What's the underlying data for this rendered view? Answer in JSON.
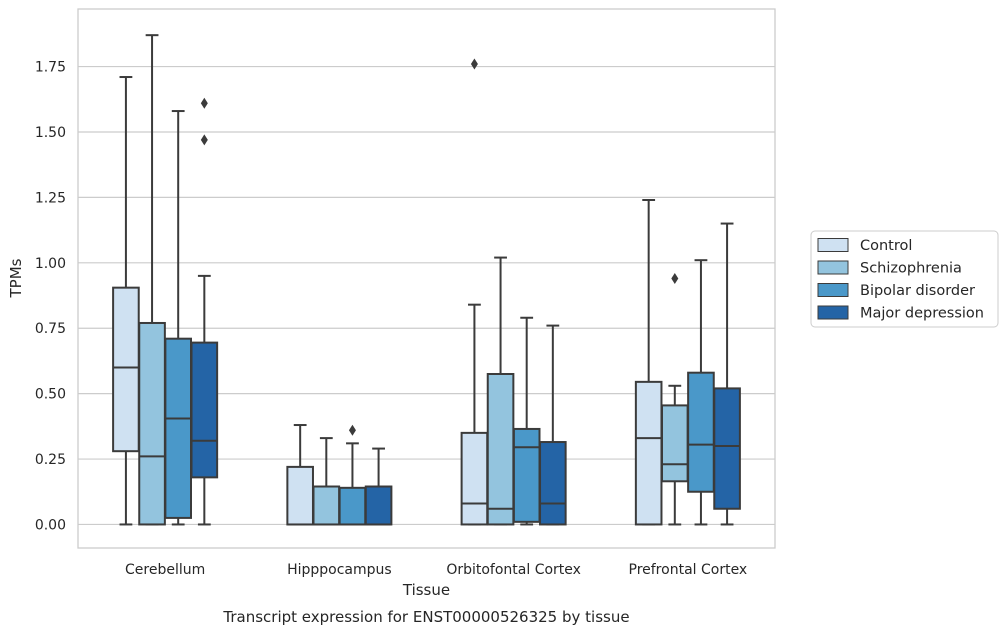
{
  "chart_data": {
    "type": "box",
    "title": "",
    "caption": "Transcript expression for ENST00000526325 by tissue",
    "xlabel": "Tissue",
    "ylabel": "TPMs",
    "ylim": [
      -0.09,
      1.97
    ],
    "yticks": [
      0.0,
      0.25,
      0.5,
      0.75,
      1.0,
      1.25,
      1.5,
      1.75
    ],
    "ytick_labels": [
      "0.00",
      "0.25",
      "0.50",
      "0.75",
      "1.00",
      "1.25",
      "1.50",
      "1.75"
    ],
    "grid": "horizontal",
    "legend_position": "right",
    "categories": [
      "Cerebellum",
      "Hipppocampus",
      "Orbitofontal Cortex",
      "Prefrontal Cortex"
    ],
    "series": [
      {
        "name": "Control",
        "color": "#cfe1f2",
        "boxes": [
          {
            "whisker_low": 0.0,
            "q1": 0.28,
            "median": 0.6,
            "q3": 0.905,
            "whisker_high": 1.71,
            "outliers": []
          },
          {
            "whisker_low": 0.0,
            "q1": 0.0,
            "median": 0.0,
            "q3": 0.22,
            "whisker_high": 0.38,
            "outliers": []
          },
          {
            "whisker_low": 0.0,
            "q1": 0.0,
            "median": 0.08,
            "q3": 0.35,
            "whisker_high": 0.84,
            "outliers": [
              1.76
            ]
          },
          {
            "whisker_low": 0.0,
            "q1": 0.0,
            "median": 0.33,
            "q3": 0.545,
            "whisker_high": 1.24,
            "outliers": []
          }
        ]
      },
      {
        "name": "Schizophrenia",
        "color": "#93c4de",
        "boxes": [
          {
            "whisker_low": 0.0,
            "q1": 0.0,
            "median": 0.26,
            "q3": 0.77,
            "whisker_high": 1.87,
            "outliers": []
          },
          {
            "whisker_low": 0.0,
            "q1": 0.0,
            "median": 0.0,
            "q3": 0.145,
            "whisker_high": 0.33,
            "outliers": []
          },
          {
            "whisker_low": 0.0,
            "q1": 0.0,
            "median": 0.06,
            "q3": 0.575,
            "whisker_high": 1.02,
            "outliers": []
          },
          {
            "whisker_low": 0.0,
            "q1": 0.165,
            "median": 0.23,
            "q3": 0.455,
            "whisker_high": 0.53,
            "outliers": [
              0.94
            ]
          }
        ]
      },
      {
        "name": "Bipolar disorder",
        "color": "#4a98c9",
        "boxes": [
          {
            "whisker_low": 0.0,
            "q1": 0.025,
            "median": 0.405,
            "q3": 0.71,
            "whisker_high": 1.58,
            "outliers": []
          },
          {
            "whisker_low": 0.0,
            "q1": 0.0,
            "median": 0.0,
            "q3": 0.14,
            "whisker_high": 0.31,
            "outliers": [
              0.36
            ]
          },
          {
            "whisker_low": 0.0,
            "q1": 0.01,
            "median": 0.295,
            "q3": 0.365,
            "whisker_high": 0.79,
            "outliers": []
          },
          {
            "whisker_low": 0.0,
            "q1": 0.125,
            "median": 0.305,
            "q3": 0.58,
            "whisker_high": 1.01,
            "outliers": []
          }
        ]
      },
      {
        "name": "Major depression",
        "color": "#2464a6",
        "boxes": [
          {
            "whisker_low": 0.0,
            "q1": 0.18,
            "median": 0.32,
            "q3": 0.695,
            "whisker_high": 0.95,
            "outliers": [
              1.47,
              1.61
            ]
          },
          {
            "whisker_low": 0.0,
            "q1": 0.0,
            "median": 0.0,
            "q3": 0.145,
            "whisker_high": 0.29,
            "outliers": []
          },
          {
            "whisker_low": 0.0,
            "q1": 0.0,
            "median": 0.08,
            "q3": 0.315,
            "whisker_high": 0.76,
            "outliers": []
          },
          {
            "whisker_low": 0.0,
            "q1": 0.06,
            "median": 0.3,
            "q3": 0.52,
            "whisker_high": 1.15,
            "outliers": []
          }
        ]
      }
    ],
    "colors": {
      "box_edge": "#3b3b3b",
      "grid": "#cccccc",
      "frame": "#cccccc",
      "text": "#262626"
    }
  }
}
